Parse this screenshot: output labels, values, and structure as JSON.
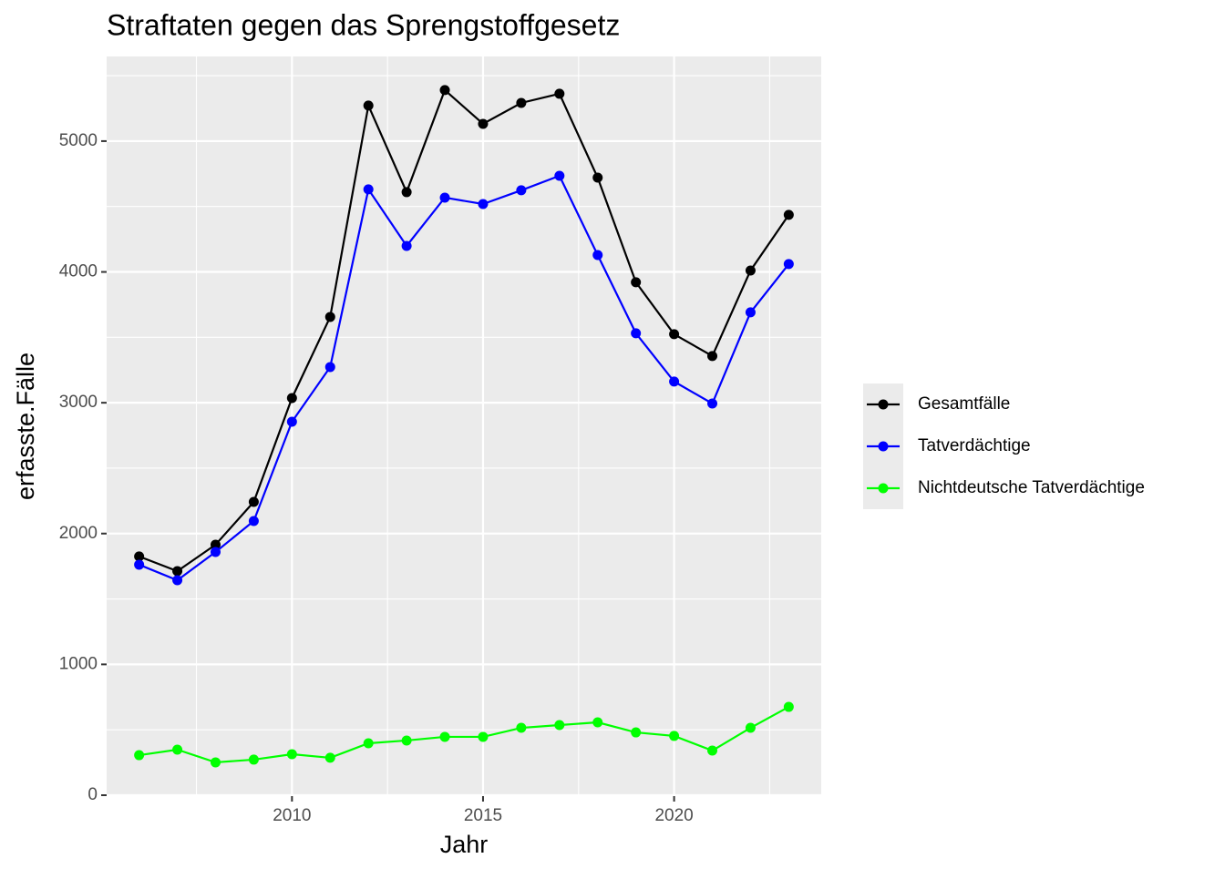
{
  "chart_data": {
    "type": "line",
    "title": "Straftaten gegen das Sprengstoffgesetz",
    "x_label": "Jahr",
    "y_label": "erfasste.Fälle",
    "x": [
      2006,
      2007,
      2008,
      2009,
      2010,
      2011,
      2012,
      2013,
      2014,
      2015,
      2016,
      2017,
      2018,
      2019,
      2020,
      2021,
      2022,
      2023
    ],
    "series": [
      {
        "name": "Gesamtfälle",
        "color": "#000000",
        "values": [
          1825,
          1713,
          1915,
          2242,
          3036,
          3656,
          5272,
          4610,
          5390,
          5132,
          5292,
          5362,
          4721,
          3921,
          3524,
          3357,
          4011,
          4436
        ]
      },
      {
        "name": "Tatverdächtige",
        "color": "#0000ff",
        "values": [
          1762,
          1643,
          1859,
          2096,
          2855,
          3273,
          4631,
          4199,
          4568,
          4519,
          4624,
          4735,
          4129,
          3531,
          3162,
          2994,
          3691,
          4060
        ]
      },
      {
        "name": "Nichtdeutsche Tatverdächtige",
        "color": "#00ff00",
        "values": [
          306,
          348,
          251,
          272,
          313,
          286,
          397,
          418,
          446,
          446,
          515,
          536,
          557,
          480,
          453,
          341,
          515,
          675
        ]
      }
    ],
    "xlim": [
      2005.15,
      2023.85
    ],
    "xticks": [
      2010,
      2015,
      2020
    ],
    "ylim": [
      -7,
      5647
    ],
    "yticks": [
      0,
      1000,
      2000,
      3000,
      4000,
      5000
    ],
    "grid": true,
    "legend_position": "right"
  }
}
